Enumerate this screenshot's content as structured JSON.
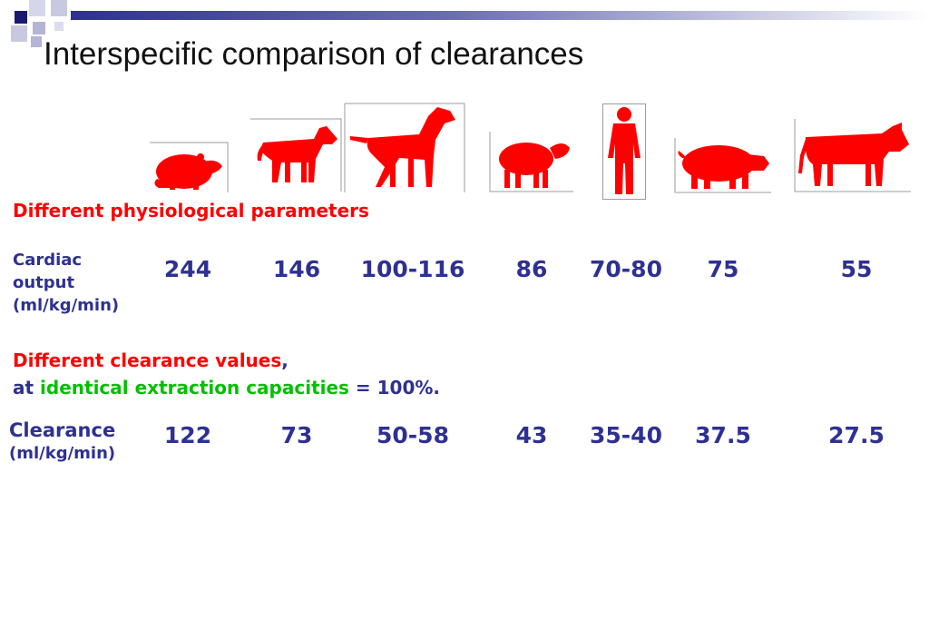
{
  "title": "Interspecific comparison of clearances",
  "colors": {
    "title_bar": "#2e3192",
    "accent_red": "#ff0000",
    "navy_text": "#2e3192",
    "green_text": "#00c000"
  },
  "animals": [
    "rat-icon",
    "dog-icon",
    "large-dog-icon",
    "sheep-icon",
    "human-icon",
    "pig-icon",
    "cow-icon"
  ],
  "section1": {
    "heading": "Different physiological parameters"
  },
  "cardiac": {
    "label_line1": "Cardiac",
    "label_line2": "output",
    "label_line3": "(ml/kg/min)",
    "values": [
      "244",
      "146",
      "100-116",
      "86",
      "70-80",
      "75",
      "55"
    ]
  },
  "section2": {
    "heading_red": "Different clearance values",
    "heading_comma": ",",
    "line2_at": "at ",
    "line2_green": "identical extraction capacities",
    "line2_rest": " = 100%."
  },
  "clearance": {
    "label_line1": "Clearance",
    "label_line2": "(ml/kg/min)",
    "values": [
      "122",
      "73",
      "50-58",
      "43",
      "35-40",
      "37.5",
      "27.5"
    ]
  }
}
